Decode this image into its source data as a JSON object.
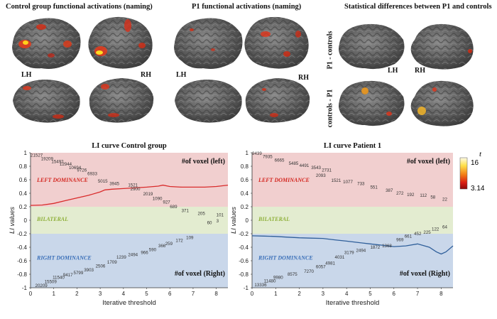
{
  "brain_panels": {
    "control_title": "Control group functional activations (naming)",
    "p1_title": "P1 functional activations (naming)",
    "stat_title": "Statistical differences between P1 and controls",
    "lh": "LH",
    "rh": "RH",
    "row_p1_controls": "P1 - controls",
    "row_controls_p1": "controls - P1"
  },
  "colorbar": {
    "symbol": "t",
    "max_label": "16",
    "min_label": "3.14"
  },
  "chart_data": [
    {
      "type": "line",
      "title": "LI curve Control group",
      "xlabel": "Iterative threshold",
      "ylabel": "LI values",
      "xlim": [
        0,
        8.5
      ],
      "ylim": [
        -1,
        1
      ],
      "xticks": [
        "0",
        "1",
        "2",
        "3",
        "4",
        "5",
        "6",
        "7",
        "8"
      ],
      "yticks": [
        "1",
        "0.8",
        "0.6",
        "0.4",
        "0.2",
        "0",
        "-0.2",
        "-0.4",
        "-0.6",
        "-0.8",
        "-1"
      ],
      "zones": {
        "left": "LEFT DOMINANCE",
        "bilateral": "BILATERAL",
        "right": "RIGHT DOMINANCE"
      },
      "voxel_left_title": "#of voxel (left)",
      "voxel_right_title": "#of voxel (Right)",
      "series": [
        {
          "color": "#d92b2b",
          "x": [
            0,
            0.5,
            1,
            1.5,
            2,
            2.5,
            3,
            3.2,
            3.5,
            4,
            4.5,
            5,
            5.5,
            5.7,
            6,
            6.5,
            7,
            7.5,
            8,
            8.5
          ],
          "y": [
            0.22,
            0.225,
            0.25,
            0.29,
            0.33,
            0.37,
            0.42,
            0.45,
            0.46,
            0.47,
            0.48,
            0.49,
            0.505,
            0.52,
            0.5,
            0.49,
            0.49,
            0.49,
            0.5,
            0.52
          ]
        }
      ],
      "voxel_left": [
        {
          "x": 0,
          "y": 0.94,
          "label": "21527"
        },
        {
          "x": 0.45,
          "y": 0.89,
          "label": "19209"
        },
        {
          "x": 0.9,
          "y": 0.85,
          "label": "15492"
        },
        {
          "x": 1.25,
          "y": 0.81,
          "label": "12944"
        },
        {
          "x": 1.65,
          "y": 0.76,
          "label": "10694"
        },
        {
          "x": 2.0,
          "y": 0.72,
          "label": "9726"
        },
        {
          "x": 2.45,
          "y": 0.67,
          "label": "6933"
        },
        {
          "x": 2.9,
          "y": 0.56,
          "label": "5015"
        },
        {
          "x": 3.4,
          "y": 0.52,
          "label": "3945"
        },
        {
          "x": 4.2,
          "y": 0.5,
          "label": "1521"
        },
        {
          "x": 4.3,
          "y": 0.44,
          "label": "2900"
        },
        {
          "x": 4.85,
          "y": 0.37,
          "label": "2019"
        },
        {
          "x": 5.25,
          "y": 0.3,
          "label": "1090"
        },
        {
          "x": 5.7,
          "y": 0.25,
          "label": "927"
        },
        {
          "x": 6.0,
          "y": 0.18,
          "label": "689"
        },
        {
          "x": 6.5,
          "y": 0.12,
          "label": "371"
        },
        {
          "x": 7.2,
          "y": 0.08,
          "label": "205"
        },
        {
          "x": 8.0,
          "y": 0.06,
          "label": "101"
        },
        {
          "x": 7.6,
          "y": -0.06,
          "label": "60"
        },
        {
          "x": 8.0,
          "y": -0.03,
          "label": "3"
        }
      ],
      "voxel_right": [
        {
          "x": 0.2,
          "y": -0.99,
          "label": "20209"
        },
        {
          "x": 0.6,
          "y": -0.93,
          "label": "15509"
        },
        {
          "x": 0.95,
          "y": -0.87,
          "label": "11540"
        },
        {
          "x": 1.4,
          "y": -0.83,
          "label": "9417"
        },
        {
          "x": 1.85,
          "y": -0.8,
          "label": "5799"
        },
        {
          "x": 2.3,
          "y": -0.76,
          "label": "3903"
        },
        {
          "x": 2.8,
          "y": -0.7,
          "label": "2506"
        },
        {
          "x": 3.3,
          "y": -0.64,
          "label": "1709"
        },
        {
          "x": 3.7,
          "y": -0.57,
          "label": "1239"
        },
        {
          "x": 4.2,
          "y": -0.53,
          "label": "2494"
        },
        {
          "x": 4.75,
          "y": -0.5,
          "label": "966"
        },
        {
          "x": 5.1,
          "y": -0.46,
          "label": "590"
        },
        {
          "x": 5.5,
          "y": -0.4,
          "label": "366"
        },
        {
          "x": 5.8,
          "y": -0.37,
          "label": "259"
        },
        {
          "x": 6.25,
          "y": -0.32,
          "label": "172"
        },
        {
          "x": 6.7,
          "y": -0.28,
          "label": "109"
        }
      ]
    },
    {
      "type": "line",
      "title": "LI curve Patient 1",
      "xlabel": "Iterative threshold",
      "ylabel": "LI values",
      "xlim": [
        0,
        8.5
      ],
      "ylim": [
        -1,
        1
      ],
      "xticks": [
        "0",
        "1",
        "2",
        "3",
        "4",
        "5",
        "6",
        "7",
        "8"
      ],
      "yticks": [
        "1",
        "0.8",
        "0.6",
        "0.4",
        "0.2",
        "0",
        "-0.2",
        "-0.4",
        "-0.6",
        "-0.8",
        "-1"
      ],
      "zones": {
        "left": "LEFT DOMINANCE",
        "bilateral": "BILATERAL",
        "right": "RIGHT DOMINANCE"
      },
      "voxel_left_title": "#of voxel (left)",
      "voxel_right_title": "#of voxel (Right)",
      "series": [
        {
          "color": "#2f5f9a",
          "x": [
            0,
            0.5,
            1,
            1.5,
            2,
            2.5,
            3,
            3.5,
            4,
            4.5,
            5,
            5.5,
            6,
            6.5,
            7,
            7.5,
            7.8,
            8.0,
            8.2,
            8.5
          ],
          "y": [
            -0.23,
            -0.235,
            -0.24,
            -0.25,
            -0.26,
            -0.265,
            -0.27,
            -0.29,
            -0.31,
            -0.33,
            -0.35,
            -0.37,
            -0.39,
            -0.38,
            -0.35,
            -0.4,
            -0.47,
            -0.5,
            -0.47,
            -0.38
          ]
        }
      ],
      "voxel_left": [
        {
          "x": 0,
          "y": 0.97,
          "label": "9439"
        },
        {
          "x": 0.45,
          "y": 0.92,
          "label": "7935"
        },
        {
          "x": 0.95,
          "y": 0.87,
          "label": "6665"
        },
        {
          "x": 1.55,
          "y": 0.82,
          "label": "5485"
        },
        {
          "x": 2.0,
          "y": 0.79,
          "label": "4491"
        },
        {
          "x": 2.5,
          "y": 0.76,
          "label": "3543"
        },
        {
          "x": 2.95,
          "y": 0.72,
          "label": "2731"
        },
        {
          "x": 2.7,
          "y": 0.64,
          "label": "2093"
        },
        {
          "x": 3.35,
          "y": 0.57,
          "label": "1521"
        },
        {
          "x": 3.85,
          "y": 0.55,
          "label": "1077"
        },
        {
          "x": 4.45,
          "y": 0.52,
          "label": "733"
        },
        {
          "x": 5.0,
          "y": 0.47,
          "label": "551"
        },
        {
          "x": 5.65,
          "y": 0.42,
          "label": "387"
        },
        {
          "x": 6.1,
          "y": 0.38,
          "label": "272"
        },
        {
          "x": 6.55,
          "y": 0.36,
          "label": "192"
        },
        {
          "x": 7.1,
          "y": 0.35,
          "label": "112"
        },
        {
          "x": 7.55,
          "y": 0.32,
          "label": "58"
        },
        {
          "x": 8.05,
          "y": 0.29,
          "label": "22"
        }
      ],
      "voxel_right": [
        {
          "x": 0.1,
          "y": -0.98,
          "label": "13336"
        },
        {
          "x": 0.5,
          "y": -0.92,
          "label": "11480"
        },
        {
          "x": 0.9,
          "y": -0.87,
          "label": "9980"
        },
        {
          "x": 1.5,
          "y": -0.82,
          "label": "8575"
        },
        {
          "x": 2.2,
          "y": -0.78,
          "label": "7270"
        },
        {
          "x": 2.7,
          "y": -0.71,
          "label": "6057"
        },
        {
          "x": 3.1,
          "y": -0.66,
          "label": "4981"
        },
        {
          "x": 3.5,
          "y": -0.57,
          "label": "4031"
        },
        {
          "x": 3.9,
          "y": -0.5,
          "label": "3179"
        },
        {
          "x": 4.4,
          "y": -0.47,
          "label": "2494"
        },
        {
          "x": 5.0,
          "y": -0.42,
          "label": "1872"
        },
        {
          "x": 5.5,
          "y": -0.4,
          "label": "1368"
        },
        {
          "x": 6.1,
          "y": -0.31,
          "label": "969"
        },
        {
          "x": 6.45,
          "y": -0.26,
          "label": "661"
        },
        {
          "x": 6.85,
          "y": -0.22,
          "label": "452"
        },
        {
          "x": 7.25,
          "y": -0.2,
          "label": "225"
        },
        {
          "x": 7.6,
          "y": -0.15,
          "label": "122"
        },
        {
          "x": 8.05,
          "y": -0.12,
          "label": "64"
        }
      ]
    }
  ]
}
